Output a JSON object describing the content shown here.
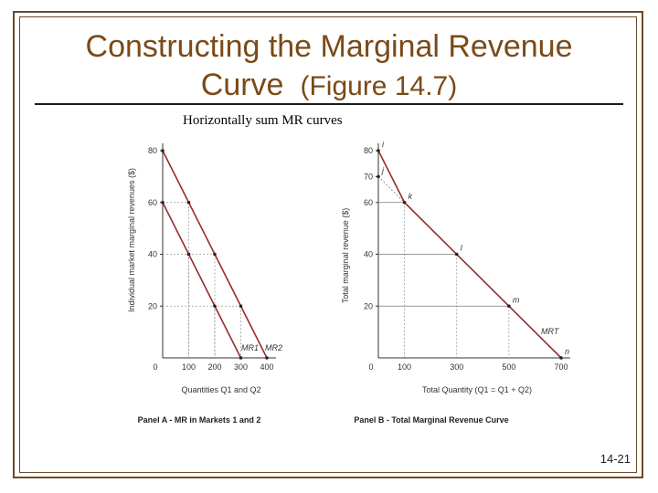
{
  "slide": {
    "title_line1": "Constructing the Marginal Revenue",
    "title_line2": "Curve",
    "title_figure": "(Figure 14.7)",
    "subtitle": "Horizontally sum MR curves",
    "slide_number": "14-21"
  },
  "colors": {
    "title": "#7a4a18",
    "curve": "#9b2a2a",
    "axis": "#333333"
  },
  "chart_data": [
    {
      "type": "line",
      "panel_title": "Panel A - MR in Markets 1 and 2",
      "ylabel": "Individual market marginal revenues ($)",
      "xlabel": "Quantities Q1 and Q2",
      "xlim": [
        0,
        400
      ],
      "ylim": [
        0,
        80
      ],
      "x_ticks": [
        0,
        100,
        200,
        300,
        400
      ],
      "y_ticks": [
        20,
        40,
        60,
        80
      ],
      "x_tick_labels": [
        "0",
        "100",
        "200",
        "300",
        "400"
      ],
      "y_tick_labels": [
        "20",
        "40",
        "60",
        "80"
      ],
      "series": [
        {
          "name": "MR1",
          "x": [
            0,
            300
          ],
          "y": [
            60,
            0
          ]
        },
        {
          "name": "MR2",
          "x": [
            0,
            400
          ],
          "y": [
            80,
            0
          ]
        }
      ]
    },
    {
      "type": "line",
      "panel_title": "Panel B - Total Marginal Revenue Curve",
      "ylabel": "Total marginal revenue ($)",
      "xlabel": "Total Quantity (Q1 = Q1 + Q2)",
      "xlim": [
        0,
        700
      ],
      "ylim": [
        0,
        80
      ],
      "x_ticks": [
        0,
        100,
        300,
        500,
        700
      ],
      "y_ticks": [
        20,
        40,
        60,
        70,
        80
      ],
      "x_tick_labels": [
        "0",
        "100",
        "300",
        "500",
        "700"
      ],
      "y_tick_labels": [
        "20",
        "40",
        "60",
        "70",
        "80"
      ],
      "series": [
        {
          "name": "MRT",
          "x": [
            0,
            100,
            700
          ],
          "y": [
            80,
            60,
            0
          ]
        }
      ],
      "points": [
        {
          "label": "i",
          "x": 0,
          "y": 80
        },
        {
          "label": "j",
          "x": 0,
          "y": 70
        },
        {
          "label": "k",
          "x": 100,
          "y": 60
        },
        {
          "label": "l",
          "x": 300,
          "y": 40
        },
        {
          "label": "m",
          "x": 500,
          "y": 20
        },
        {
          "label": "n",
          "x": 700,
          "y": 0
        }
      ]
    }
  ]
}
